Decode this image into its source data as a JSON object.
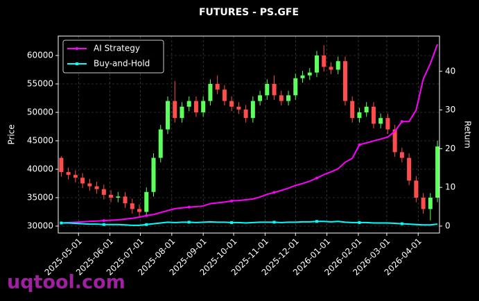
{
  "chart_data": {
    "type": "candlestick",
    "title": "FUTURES - PS.GFE",
    "ylabel": "Price",
    "y2label": "Return",
    "watermark": "uqtool.com",
    "x": [
      "2025-04-14",
      "2025-04-21",
      "2025-04-28",
      "2025-05-05",
      "2025-05-12",
      "2025-05-19",
      "2025-05-26",
      "2025-06-02",
      "2025-06-09",
      "2025-06-16",
      "2025-06-23",
      "2025-06-30",
      "2025-07-07",
      "2025-07-14",
      "2025-07-21",
      "2025-07-28",
      "2025-08-04",
      "2025-08-11",
      "2025-08-18",
      "2025-08-25",
      "2025-09-01",
      "2025-09-08",
      "2025-09-15",
      "2025-09-22",
      "2025-09-29",
      "2025-10-06",
      "2025-10-13",
      "2025-10-20",
      "2025-10-27",
      "2025-11-03",
      "2025-11-10",
      "2025-11-17",
      "2025-11-24",
      "2025-12-01",
      "2025-12-08",
      "2025-12-15",
      "2025-12-22",
      "2025-12-29",
      "2026-01-05",
      "2026-01-12",
      "2026-01-19",
      "2026-01-26",
      "2026-02-02",
      "2026-02-09",
      "2026-02-16",
      "2026-02-23",
      "2026-03-02",
      "2026-03-09",
      "2026-03-16",
      "2026-03-23",
      "2026-03-30",
      "2026-04-06",
      "2026-04-13",
      "2026-04-20"
    ],
    "open": [
      42000,
      39500,
      39000,
      38500,
      37500,
      37000,
      36500,
      35500,
      35000,
      35200,
      34000,
      33000,
      32500,
      36000,
      42000,
      47000,
      52000,
      49000,
      51000,
      52000,
      50000,
      52000,
      55000,
      54000,
      52000,
      51000,
      50500,
      49000,
      52000,
      53000,
      55000,
      53000,
      52000,
      53000,
      56000,
      56500,
      57000,
      60000,
      58000,
      57500,
      59000,
      52000,
      49000,
      50000,
      51000,
      48000,
      49000,
      47000,
      43000,
      42000,
      38000,
      35000,
      33000,
      35000
    ],
    "high": [
      42300,
      40300,
      39800,
      39300,
      38300,
      37800,
      37300,
      36300,
      36000,
      36000,
      34800,
      33800,
      36800,
      42800,
      47800,
      52800,
      55500,
      51800,
      52800,
      52800,
      52800,
      55800,
      56500,
      54800,
      52800,
      51800,
      51300,
      52800,
      53800,
      55800,
      56500,
      53800,
      53800,
      56800,
      57300,
      57800,
      60800,
      61800,
      58800,
      59800,
      59800,
      52800,
      50800,
      51800,
      51800,
      49800,
      49800,
      47800,
      43800,
      42800,
      38800,
      35800,
      35800,
      45000
    ],
    "low": [
      38700,
      38200,
      37700,
      36700,
      36200,
      35700,
      34700,
      34200,
      34200,
      33200,
      32200,
      31500,
      31700,
      35200,
      41200,
      46200,
      48200,
      48200,
      50200,
      49200,
      49200,
      51200,
      53200,
      51200,
      50200,
      49700,
      48200,
      48200,
      51200,
      52200,
      52200,
      51200,
      51200,
      52200,
      55200,
      55700,
      56200,
      57200,
      56700,
      56700,
      51200,
      48200,
      48200,
      49200,
      47200,
      47200,
      46200,
      42200,
      41200,
      37200,
      34200,
      32200,
      31000,
      34200
    ],
    "close": [
      39500,
      39000,
      38500,
      37500,
      37000,
      36500,
      35500,
      35000,
      35200,
      34000,
      33000,
      32500,
      36000,
      42000,
      47000,
      52000,
      49000,
      51000,
      52000,
      50000,
      52000,
      55000,
      54000,
      52000,
      51000,
      50500,
      49000,
      52000,
      53000,
      55000,
      53000,
      52000,
      53000,
      56000,
      56500,
      57000,
      60000,
      58000,
      57500,
      59000,
      52000,
      49000,
      50000,
      51000,
      48000,
      49000,
      47000,
      43000,
      42000,
      38000,
      35000,
      33000,
      35000,
      44000
    ],
    "up_color": "#5cff5c",
    "down_color": "#ff4d4d",
    "series": [
      {
        "name": "AI Strategy",
        "color": "#ff00ff",
        "axis": "y2",
        "marker": "circle",
        "values": [
          0.8,
          0.9,
          1.0,
          1.1,
          1.2,
          1.3,
          1.4,
          1.5,
          1.6,
          1.8,
          2.0,
          2.3,
          2.7,
          3.0,
          3.5,
          4.0,
          4.5,
          4.7,
          4.9,
          5.0,
          5.2,
          5.8,
          6.0,
          6.2,
          6.5,
          6.6,
          6.8,
          7.0,
          7.5,
          8.2,
          8.7,
          9.2,
          9.8,
          10.5,
          11.0,
          11.6,
          12.4,
          13.3,
          14.0,
          14.8,
          16.5,
          17.5,
          21.0,
          21.5,
          22.0,
          22.5,
          23.0,
          24.5,
          27.0,
          27.0,
          30.0,
          38.0,
          42.0,
          47.0
        ]
      },
      {
        "name": "Buy-and-Hold",
        "color": "#00ffff",
        "axis": "y2",
        "marker": "square",
        "values": [
          0.8,
          0.8,
          0.7,
          0.6,
          0.5,
          0.5,
          0.4,
          0.4,
          0.4,
          0.3,
          0.2,
          0.2,
          0.4,
          0.6,
          0.8,
          1.0,
          0.9,
          1.0,
          1.0,
          0.9,
          1.0,
          1.1,
          1.0,
          1.0,
          0.9,
          0.9,
          0.8,
          0.9,
          1.0,
          1.0,
          1.0,
          0.9,
          1.0,
          1.0,
          1.1,
          1.1,
          1.2,
          1.2,
          1.1,
          1.2,
          1.0,
          0.9,
          0.9,
          0.9,
          0.8,
          0.8,
          0.8,
          0.7,
          0.6,
          0.5,
          0.4,
          0.3,
          0.3,
          0.5
        ]
      }
    ],
    "xlim": [
      "2025-04-11",
      "2026-04-22"
    ],
    "xticks": [
      "2025-05-01",
      "2025-06-01",
      "2025-07-01",
      "2025-08-01",
      "2025-09-01",
      "2025-10-01",
      "2025-11-01",
      "2025-12-01",
      "2026-01-01",
      "2026-02-01",
      "2026-03-01",
      "2026-04-01"
    ],
    "ylim": [
      28780,
      63415
    ],
    "yticks": [
      30000,
      35000,
      40000,
      45000,
      50000,
      55000,
      60000
    ],
    "y2lim": [
      -1.8,
      49.1
    ],
    "y2ticks": [
      0,
      10,
      20,
      30,
      40
    ],
    "grid": true,
    "legend": "upper left"
  }
}
